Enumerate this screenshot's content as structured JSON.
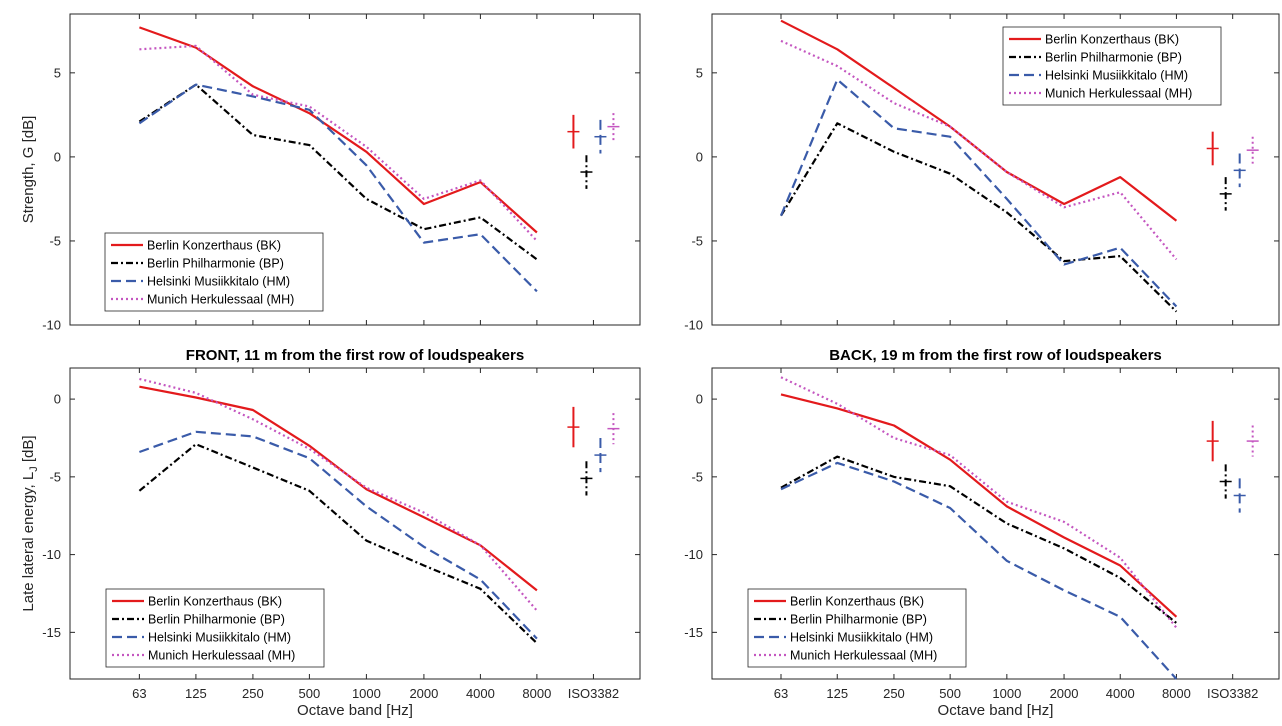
{
  "chart_data": [
    {
      "id": "tl",
      "type": "line",
      "title": "",
      "xlabel": "",
      "ylabel": "Strength, G [dB]",
      "ylim": [
        -10,
        8.5
      ],
      "yticks": [
        -10,
        -5,
        0,
        5
      ],
      "yticklabels": [
        "-10",
        "-5",
        "0",
        "5"
      ],
      "categories": [
        "63",
        "125",
        "250",
        "500",
        "1000",
        "2000",
        "4000",
        "8000"
      ],
      "show_xticklabels": false,
      "grid": false,
      "legend": "bottom-left",
      "series": [
        {
          "name": "Berlin Konzerthaus (BK)",
          "color": "#e31a1c",
          "dash": "solid",
          "values": [
            7.7,
            6.5,
            4.2,
            2.6,
            0.3,
            -2.8,
            -1.5,
            -4.5
          ]
        },
        {
          "name": "Berlin Philharmonie (BP)",
          "color": "#000000",
          "dash": "dashdot",
          "values": [
            2.1,
            4.3,
            1.3,
            0.7,
            -2.5,
            -4.3,
            -3.6,
            -6.1
          ]
        },
        {
          "name": "Helsinki Musiikkitalo (HM)",
          "color": "#3a5ba9",
          "dash": "dash",
          "values": [
            2.0,
            4.3,
            3.6,
            2.8,
            -0.5,
            -5.1,
            -4.6,
            -8.0
          ]
        },
        {
          "name": "Munich Herkulessaal (MH)",
          "color": "#c456c0",
          "dash": "dot",
          "values": [
            6.4,
            6.6,
            3.7,
            3.0,
            0.6,
            -2.5,
            -1.4,
            -5.0
          ]
        }
      ],
      "iso3382": [
        {
          "color": "#e31a1c",
          "dash": "solid",
          "center": 1.5,
          "halfrange": 1.0
        },
        {
          "color": "#000000",
          "dash": "dashdot",
          "center": -0.9,
          "halfrange": 1.0
        },
        {
          "color": "#3a5ba9",
          "dash": "dash",
          "center": 1.2,
          "halfrange": 1.0
        },
        {
          "color": "#c456c0",
          "dash": "dot",
          "center": 1.8,
          "halfrange": 0.8
        }
      ]
    },
    {
      "id": "tr",
      "type": "line",
      "title": "",
      "xlabel": "",
      "ylabel": "",
      "ylim": [
        -10,
        8.5
      ],
      "yticks": [
        -10,
        -5,
        0,
        5
      ],
      "yticklabels": [
        "-10",
        "-5",
        "0",
        "5"
      ],
      "categories": [
        "63",
        "125",
        "250",
        "500",
        "1000",
        "2000",
        "4000",
        "8000"
      ],
      "show_xticklabels": false,
      "grid": false,
      "legend": "top-right",
      "series": [
        {
          "name": "Berlin Konzerthaus (BK)",
          "color": "#e31a1c",
          "dash": "solid",
          "values": [
            8.1,
            6.4,
            4.1,
            1.8,
            -0.9,
            -2.8,
            -1.2,
            -3.8
          ]
        },
        {
          "name": "Berlin Philharmonie (BP)",
          "color": "#000000",
          "dash": "dashdot",
          "values": [
            -3.5,
            2.0,
            0.3,
            -1.0,
            -3.3,
            -6.2,
            -5.9,
            -9.2
          ]
        },
        {
          "name": "Helsinki Musiikkitalo (HM)",
          "color": "#3a5ba9",
          "dash": "dash",
          "values": [
            -3.5,
            4.6,
            1.7,
            1.2,
            -2.5,
            -6.4,
            -5.4,
            -8.9
          ]
        },
        {
          "name": "Munich Herkulessaal (MH)",
          "color": "#c456c0",
          "dash": "dot",
          "values": [
            6.9,
            5.4,
            3.2,
            1.8,
            -0.9,
            -3.0,
            -2.1,
            -6.1
          ]
        }
      ],
      "iso3382": [
        {
          "color": "#e31a1c",
          "dash": "solid",
          "center": 0.5,
          "halfrange": 1.0
        },
        {
          "color": "#000000",
          "dash": "dashdot",
          "center": -2.2,
          "halfrange": 1.0
        },
        {
          "color": "#3a5ba9",
          "dash": "dash",
          "center": -0.8,
          "halfrange": 1.0
        },
        {
          "color": "#c456c0",
          "dash": "dot",
          "center": 0.4,
          "halfrange": 0.8
        }
      ]
    },
    {
      "id": "bl",
      "type": "line",
      "title": "FRONT, 11 m from the first row of loudspeakers",
      "xlabel": "Octave band [Hz]",
      "ylabel": "Late lateral energy, L",
      "ylabel_sub": "J",
      "ylabel_unit": " [dB]",
      "ylim": [
        -18,
        2
      ],
      "yticks": [
        -15,
        -10,
        -5,
        0
      ],
      "yticklabels": [
        "-15",
        "-10",
        "-5",
        "0"
      ],
      "categories": [
        "63",
        "125",
        "250",
        "500",
        "1000",
        "2000",
        "4000",
        "8000"
      ],
      "show_xticklabels": true,
      "iso_label": "ISO3382",
      "grid": false,
      "legend": "bottom-left",
      "series": [
        {
          "name": "Berlin Konzerthaus (BK)",
          "color": "#e31a1c",
          "dash": "solid",
          "values": [
            0.8,
            0.1,
            -0.7,
            -3.0,
            -5.8,
            -7.6,
            -9.4,
            -12.3
          ]
        },
        {
          "name": "Berlin Philharmonie (BP)",
          "color": "#000000",
          "dash": "dashdot",
          "values": [
            -5.9,
            -2.9,
            -4.4,
            -5.9,
            -9.1,
            -10.7,
            -12.2,
            -15.7
          ]
        },
        {
          "name": "Helsinki Musiikkitalo (HM)",
          "color": "#3a5ba9",
          "dash": "dash",
          "values": [
            -3.4,
            -2.1,
            -2.4,
            -3.8,
            -6.9,
            -9.5,
            -11.6,
            -15.4
          ]
        },
        {
          "name": "Munich Herkulessaal (MH)",
          "color": "#c456c0",
          "dash": "dot",
          "values": [
            1.3,
            0.4,
            -1.3,
            -3.2,
            -5.7,
            -7.3,
            -9.4,
            -13.6
          ]
        }
      ],
      "iso3382": [
        {
          "color": "#e31a1c",
          "dash": "solid",
          "center": -1.8,
          "halfrange": 1.3
        },
        {
          "color": "#000000",
          "dash": "dashdot",
          "center": -5.1,
          "halfrange": 1.1
        },
        {
          "color": "#3a5ba9",
          "dash": "dash",
          "center": -3.6,
          "halfrange": 1.1
        },
        {
          "color": "#c456c0",
          "dash": "dot",
          "center": -1.9,
          "halfrange": 1.0
        }
      ]
    },
    {
      "id": "br",
      "type": "line",
      "title": "BACK, 19 m from the first row of loudspeakers",
      "xlabel": "Octave band [Hz]",
      "ylabel": "",
      "ylim": [
        -18,
        2
      ],
      "yticks": [
        -15,
        -10,
        -5,
        0
      ],
      "yticklabels": [
        "-15",
        "-10",
        "-5",
        "0"
      ],
      "categories": [
        "63",
        "125",
        "250",
        "500",
        "1000",
        "2000",
        "4000",
        "8000"
      ],
      "show_xticklabels": true,
      "iso_label": "ISO3382",
      "grid": false,
      "legend": "bottom-left",
      "series": [
        {
          "name": "Berlin Konzerthaus (BK)",
          "color": "#e31a1c",
          "dash": "solid",
          "values": [
            0.3,
            -0.6,
            -1.7,
            -3.9,
            -6.9,
            -8.9,
            -10.7,
            -14.0
          ]
        },
        {
          "name": "Berlin Philharmonie (BP)",
          "color": "#000000",
          "dash": "dashdot",
          "values": [
            -5.7,
            -3.7,
            -5.0,
            -5.6,
            -8.0,
            -9.6,
            -11.5,
            -14.4
          ]
        },
        {
          "name": "Helsinki Musiikkitalo (HM)",
          "color": "#3a5ba9",
          "dash": "dash",
          "values": [
            -5.8,
            -4.1,
            -5.3,
            -7.0,
            -10.4,
            -12.3,
            -14.0,
            -18.0
          ]
        },
        {
          "name": "Munich Herkulessaal (MH)",
          "color": "#c456c0",
          "dash": "dot",
          "values": [
            1.4,
            -0.3,
            -2.5,
            -3.6,
            -6.6,
            -7.9,
            -10.2,
            -14.7
          ]
        }
      ],
      "iso3382": [
        {
          "color": "#e31a1c",
          "dash": "solid",
          "center": -2.7,
          "halfrange": 1.3
        },
        {
          "color": "#000000",
          "dash": "dashdot",
          "center": -5.3,
          "halfrange": 1.1
        },
        {
          "color": "#3a5ba9",
          "dash": "dash",
          "center": -6.2,
          "halfrange": 1.1
        },
        {
          "color": "#c456c0",
          "dash": "dot",
          "center": -2.7,
          "halfrange": 1.0
        }
      ]
    }
  ]
}
